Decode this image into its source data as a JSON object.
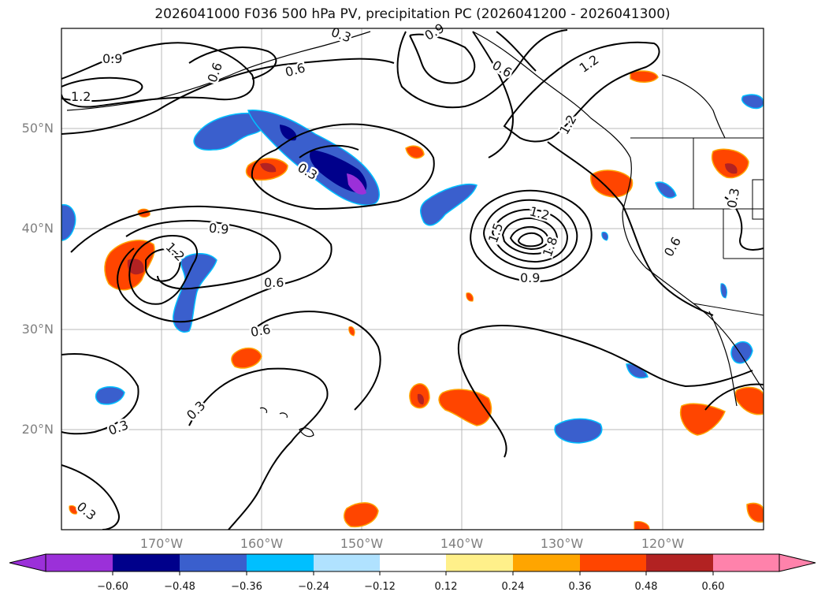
{
  "title": "2026041000 F036 500 hPa PV, precipitation PC (2026041200 - 2026041300)",
  "latitude_labels": [
    "50°N",
    "40°N",
    "30°N",
    "20°N"
  ],
  "longitude_labels": [
    "170°W",
    "160°W",
    "150°W",
    "140°W",
    "130°W",
    "120°W"
  ],
  "colorbar": {
    "ticks": [
      "−0.60",
      "−0.48",
      "−0.36",
      "−0.24",
      "−0.12",
      "0.12",
      "0.24",
      "0.36",
      "0.48",
      "0.60"
    ],
    "colors": [
      "#9b30d9",
      "#00008b",
      "#3a5fcd",
      "#00bfff",
      "#b0e2ff",
      "#ffffff",
      "#fff08a",
      "#ffa500",
      "#ff4500",
      "#b22222",
      "#ff82ab"
    ]
  },
  "contour_labels": [
    "0.9",
    "1.2",
    "0.6",
    "0.3",
    "0.6",
    "1.2",
    "0.6",
    "0.9",
    "1.2",
    "0.6",
    "0.3",
    "0.9",
    "1.2",
    "0.6",
    "0.3",
    "1.2",
    "1.5",
    "1.8",
    "0.9",
    "0.6",
    "0.3",
    "0.3",
    "0.3"
  ],
  "chart_data": {
    "type": "map",
    "title": "2026041000 F036 500 hPa PV, precipitation PC (2026041200 - 2026041300)",
    "field": "500 hPa PV contours with precipitation PC shading",
    "lon_ticks": [
      "170°W",
      "160°W",
      "150°W",
      "140°W",
      "130°W",
      "120°W"
    ],
    "lat_ticks": [
      "50°N",
      "40°N",
      "30°N",
      "20°N"
    ],
    "colorbar_levels": [
      -0.6,
      -0.48,
      -0.36,
      -0.24,
      -0.12,
      0.12,
      0.24,
      0.36,
      0.48,
      0.6
    ],
    "pv_contour_levels": [
      0.3,
      0.6,
      0.9,
      1.2,
      1.5,
      1.8
    ]
  }
}
